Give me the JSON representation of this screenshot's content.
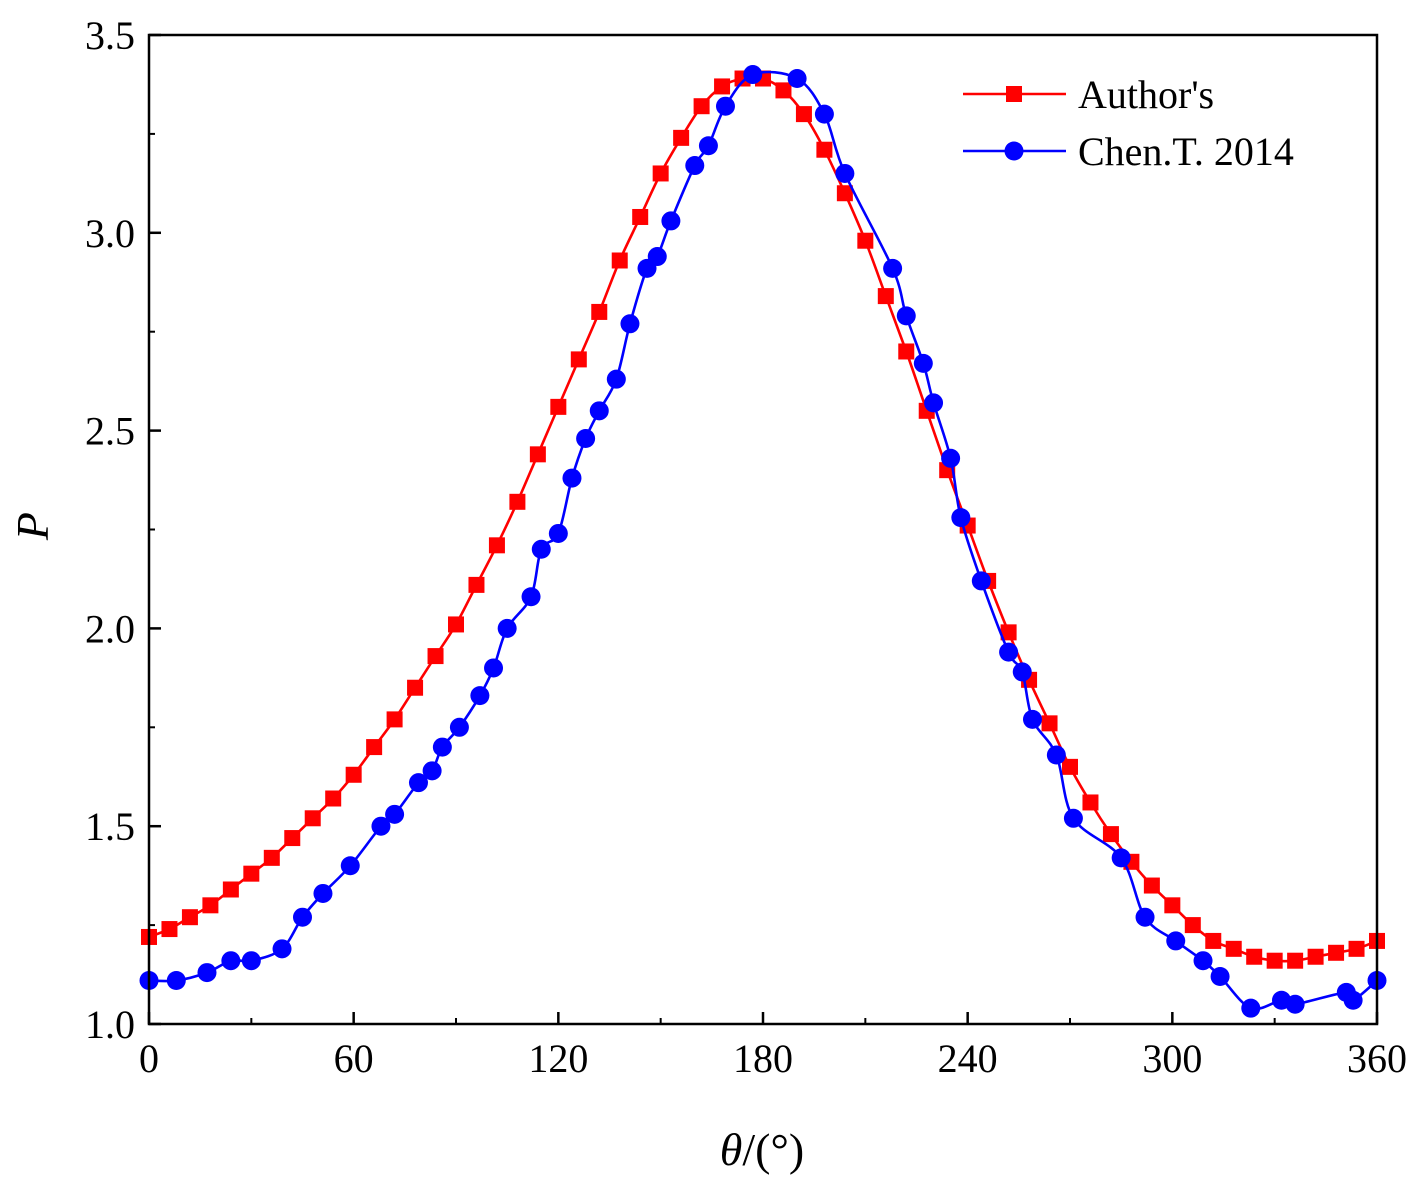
{
  "chart_data": {
    "type": "line",
    "title": "",
    "xlabel_var": "θ",
    "xlabel_unit": "/(°)",
    "ylabel": "P",
    "xlim": [
      0,
      360
    ],
    "ylim": [
      1.0,
      3.5
    ],
    "xticks": [
      0,
      60,
      120,
      180,
      240,
      300,
      360
    ],
    "xtick_labels": [
      "0",
      "60",
      "120",
      "180",
      "240",
      "300",
      "360"
    ],
    "yticks": [
      1.0,
      1.5,
      2.0,
      2.5,
      3.0,
      3.5
    ],
    "ytick_labels": [
      "1.0",
      "1.5",
      "2.0",
      "2.5",
      "3.0",
      "3.5"
    ],
    "grid": false,
    "legend_position": "top-right",
    "series": [
      {
        "name": "Author's",
        "color": "#ff0000",
        "marker": "square",
        "x": [
          0,
          6,
          12,
          18,
          24,
          30,
          36,
          42,
          48,
          54,
          60,
          66,
          72,
          78,
          84,
          90,
          96,
          102,
          108,
          114,
          120,
          126,
          132,
          138,
          144,
          150,
          156,
          162,
          168,
          174,
          180,
          186,
          192,
          198,
          204,
          210,
          216,
          222,
          228,
          234,
          240,
          246,
          252,
          258,
          264,
          270,
          276,
          282,
          288,
          294,
          300,
          306,
          312,
          318,
          324,
          330,
          336,
          342,
          348,
          354,
          360
        ],
        "y": [
          1.22,
          1.24,
          1.27,
          1.3,
          1.34,
          1.38,
          1.42,
          1.47,
          1.52,
          1.57,
          1.63,
          1.7,
          1.77,
          1.85,
          1.93,
          2.01,
          2.11,
          2.21,
          2.32,
          2.44,
          2.56,
          2.68,
          2.8,
          2.93,
          3.04,
          3.15,
          3.24,
          3.32,
          3.37,
          3.39,
          3.39,
          3.36,
          3.3,
          3.21,
          3.1,
          2.98,
          2.84,
          2.7,
          2.55,
          2.4,
          2.26,
          2.12,
          1.99,
          1.87,
          1.76,
          1.65,
          1.56,
          1.48,
          1.41,
          1.35,
          1.3,
          1.25,
          1.21,
          1.19,
          1.17,
          1.16,
          1.16,
          1.17,
          1.18,
          1.19,
          1.21
        ]
      },
      {
        "name": "Chen.T. 2014",
        "color": "#0000ff",
        "marker": "circle",
        "x": [
          0,
          8,
          17,
          24,
          30,
          39,
          45,
          51,
          59,
          68,
          72,
          79,
          83,
          86,
          91,
          97,
          101,
          105,
          112,
          115,
          120,
          124,
          128,
          132,
          137,
          141,
          146,
          149,
          153,
          160,
          164,
          169,
          177,
          190,
          198,
          204,
          218,
          222,
          227,
          230,
          235,
          238,
          244,
          252,
          256,
          259,
          266,
          271,
          285,
          292,
          301,
          309,
          314,
          323,
          332,
          336,
          351,
          353,
          360
        ],
        "y": [
          1.11,
          1.11,
          1.13,
          1.16,
          1.16,
          1.19,
          1.27,
          1.33,
          1.4,
          1.5,
          1.53,
          1.61,
          1.64,
          1.7,
          1.75,
          1.83,
          1.9,
          2.0,
          2.08,
          2.2,
          2.24,
          2.38,
          2.48,
          2.55,
          2.63,
          2.77,
          2.91,
          2.94,
          3.03,
          3.17,
          3.22,
          3.32,
          3.4,
          3.39,
          3.3,
          3.15,
          2.91,
          2.79,
          2.67,
          2.57,
          2.43,
          2.28,
          2.12,
          1.94,
          1.89,
          1.77,
          1.68,
          1.52,
          1.42,
          1.27,
          1.21,
          1.16,
          1.12,
          1.04,
          1.06,
          1.05,
          1.08,
          1.06,
          1.11
        ]
      }
    ]
  }
}
